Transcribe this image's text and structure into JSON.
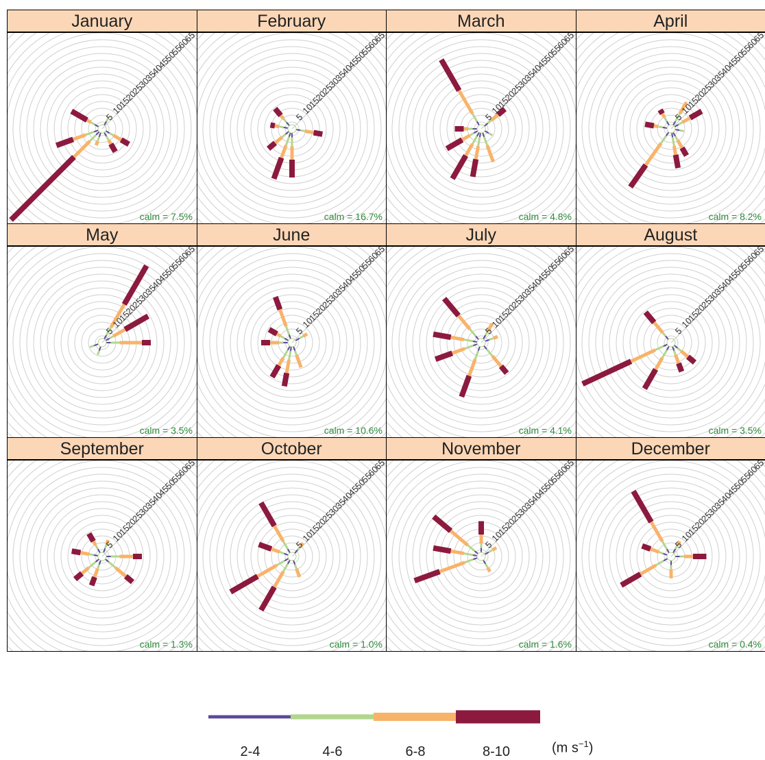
{
  "chart_data": {
    "type": "polar-bar",
    "title": "",
    "radial_ticks": [
      "5",
      "10",
      "15",
      "20",
      "25",
      "30",
      "35",
      "40",
      "45",
      "50",
      "55",
      "60",
      "65"
    ],
    "speed_bins": [
      "2-4",
      "4-6",
      "6-8",
      "8-10"
    ],
    "units_prefix": "(m s",
    "units_exp": "−1",
    "units_suffix": ")",
    "colors": {
      "2-4": "#5b4a9a",
      "4-6": "#b2d68d",
      "6-8": "#f8b36a",
      "8-10": "#8c1a3e"
    },
    "panels": [
      {
        "month": "January",
        "calm": "calm = 7.5%",
        "petals": [
          {
            "dir": 225,
            "segs": [
              1,
              2,
              5,
              20
            ]
          },
          {
            "dir": 250,
            "segs": [
              1,
              2,
              3,
              4
            ]
          },
          {
            "dir": 300,
            "segs": [
              1,
              1,
              1,
              4
            ]
          },
          {
            "dir": 150,
            "segs": [
              1,
              1,
              1,
              2
            ]
          },
          {
            "dir": 120,
            "segs": [
              1,
              1,
              2,
              2
            ]
          },
          {
            "dir": 30,
            "segs": [
              1,
              1,
              0,
              0
            ]
          },
          {
            "dir": 200,
            "segs": [
              1,
              1,
              1,
              0
            ]
          }
        ]
      },
      {
        "month": "February",
        "calm": "calm = 16.7%",
        "petals": [
          {
            "dir": 200,
            "segs": [
              1,
              2,
              3,
              5
            ]
          },
          {
            "dir": 180,
            "segs": [
              1,
              2,
              3,
              4
            ]
          },
          {
            "dir": 230,
            "segs": [
              1,
              1,
              2,
              2
            ]
          },
          {
            "dir": 280,
            "segs": [
              1,
              1,
              1,
              1
            ]
          },
          {
            "dir": 100,
            "segs": [
              1,
              1,
              2,
              2
            ]
          },
          {
            "dir": 320,
            "segs": [
              1,
              1,
              1,
              2
            ]
          }
        ]
      },
      {
        "month": "March",
        "calm": "calm = 4.8%",
        "petals": [
          {
            "dir": 330,
            "segs": [
              1,
              2,
              6,
              8
            ]
          },
          {
            "dir": 210,
            "segs": [
              1,
              2,
              3,
              6
            ]
          },
          {
            "dir": 190,
            "segs": [
              1,
              2,
              3,
              4
            ]
          },
          {
            "dir": 160,
            "segs": [
              1,
              2,
              4,
              0
            ]
          },
          {
            "dir": 240,
            "segs": [
              1,
              1,
              2,
              4
            ]
          },
          {
            "dir": 50,
            "segs": [
              1,
              1,
              2,
              2
            ]
          },
          {
            "dir": 270,
            "segs": [
              1,
              1,
              1,
              2
            ]
          },
          {
            "dir": 120,
            "segs": [
              1,
              1,
              0,
              0
            ]
          }
        ]
      },
      {
        "month": "April",
        "calm": "calm = 8.2%",
        "petals": [
          {
            "dir": 215,
            "segs": [
              1,
              2,
              6,
              6
            ]
          },
          {
            "dir": 170,
            "segs": [
              1,
              2,
              2,
              3
            ]
          },
          {
            "dir": 150,
            "segs": [
              1,
              1,
              2,
              2
            ]
          },
          {
            "dir": 30,
            "segs": [
              1,
              2,
              3,
              0
            ]
          },
          {
            "dir": 60,
            "segs": [
              1,
              1,
              2,
              3
            ]
          },
          {
            "dir": 280,
            "segs": [
              1,
              1,
              1,
              2
            ]
          },
          {
            "dir": 330,
            "segs": [
              1,
              1,
              1,
              1
            ]
          },
          {
            "dir": 100,
            "segs": [
              1,
              1,
              0,
              0
            ]
          }
        ]
      },
      {
        "month": "May",
        "calm": "calm = 3.5%",
        "petals": [
          {
            "dir": 30,
            "segs": [
              1,
              2,
              6,
              10
            ]
          },
          {
            "dir": 60,
            "segs": [
              1,
              1,
              3,
              6
            ]
          },
          {
            "dir": 90,
            "segs": [
              1,
              2,
              5,
              2
            ]
          },
          {
            "dir": 200,
            "segs": [
              1,
              1,
              0,
              0
            ]
          },
          {
            "dir": 250,
            "segs": [
              1,
              1,
              0,
              0
            ]
          }
        ]
      },
      {
        "month": "June",
        "calm": "calm = 10.6%",
        "petals": [
          {
            "dir": 340,
            "segs": [
              1,
              2,
              4,
              3
            ]
          },
          {
            "dir": 190,
            "segs": [
              1,
              2,
              3,
              3
            ]
          },
          {
            "dir": 210,
            "segs": [
              1,
              2,
              2,
              3
            ]
          },
          {
            "dir": 160,
            "segs": [
              1,
              1,
              3,
              0
            ]
          },
          {
            "dir": 270,
            "segs": [
              1,
              1,
              2,
              2
            ]
          },
          {
            "dir": 300,
            "segs": [
              1,
              1,
              1,
              2
            ]
          },
          {
            "dir": 60,
            "segs": [
              1,
              1,
              1,
              0
            ]
          }
        ]
      },
      {
        "month": "July",
        "calm": "calm = 4.1%",
        "petals": [
          {
            "dir": 320,
            "segs": [
              1,
              2,
              4,
              5
            ]
          },
          {
            "dir": 200,
            "segs": [
              1,
              2,
              4,
              5
            ]
          },
          {
            "dir": 280,
            "segs": [
              1,
              2,
              3,
              4
            ]
          },
          {
            "dir": 250,
            "segs": [
              1,
              2,
              3,
              4
            ]
          },
          {
            "dir": 140,
            "segs": [
              1,
              2,
              3,
              2
            ]
          },
          {
            "dir": 30,
            "segs": [
              1,
              1,
              2,
              0
            ]
          },
          {
            "dir": 70,
            "segs": [
              1,
              1,
              1,
              0
            ]
          }
        ]
      },
      {
        "month": "August",
        "calm": "calm = 3.5%",
        "petals": [
          {
            "dir": 245,
            "segs": [
              1,
              2,
              6,
              12
            ]
          },
          {
            "dir": 210,
            "segs": [
              1,
              2,
              3,
              5
            ]
          },
          {
            "dir": 320,
            "segs": [
              1,
              1,
              3,
              3
            ]
          },
          {
            "dir": 160,
            "segs": [
              1,
              1,
              2,
              2
            ]
          },
          {
            "dir": 130,
            "segs": [
              1,
              1,
              2,
              2
            ]
          }
        ]
      },
      {
        "month": "September",
        "calm": "calm = 1.3%",
        "petals": [
          {
            "dir": 90,
            "segs": [
              1,
              2,
              3,
              2
            ]
          },
          {
            "dir": 130,
            "segs": [
              1,
              2,
              3,
              2
            ]
          },
          {
            "dir": 230,
            "segs": [
              1,
              2,
              2,
              2
            ]
          },
          {
            "dir": 280,
            "segs": [
              1,
              1,
              2,
              2
            ]
          },
          {
            "dir": 330,
            "segs": [
              1,
              1,
              1,
              2
            ]
          },
          {
            "dir": 200,
            "segs": [
              1,
              1,
              2,
              2
            ]
          },
          {
            "dir": 20,
            "segs": [
              1,
              1,
              1,
              0
            ]
          }
        ]
      },
      {
        "month": "October",
        "calm": "calm = 1.0%",
        "petals": [
          {
            "dir": 240,
            "segs": [
              1,
              2,
              5,
              7
            ]
          },
          {
            "dir": 210,
            "segs": [
              1,
              2,
              4,
              6
            ]
          },
          {
            "dir": 330,
            "segs": [
              1,
              2,
              4,
              6
            ]
          },
          {
            "dir": 290,
            "segs": [
              1,
              1,
              2,
              3
            ]
          },
          {
            "dir": 160,
            "segs": [
              1,
              1,
              2,
              0
            ]
          },
          {
            "dir": 40,
            "segs": [
              1,
              1,
              1,
              0
            ]
          }
        ]
      },
      {
        "month": "November",
        "calm": "calm = 1.6%",
        "petals": [
          {
            "dir": 250,
            "segs": [
              1,
              2,
              6,
              6
            ]
          },
          {
            "dir": 310,
            "segs": [
              1,
              2,
              5,
              5
            ]
          },
          {
            "dir": 280,
            "segs": [
              1,
              2,
              3,
              4
            ]
          },
          {
            "dir": 0,
            "segs": [
              1,
              1,
              2,
              3
            ]
          },
          {
            "dir": 150,
            "segs": [
              1,
              1,
              1,
              0
            ]
          },
          {
            "dir": 60,
            "segs": [
              1,
              1,
              1,
              0
            ]
          }
        ]
      },
      {
        "month": "December",
        "calm": "calm = 0.4%",
        "petals": [
          {
            "dir": 330,
            "segs": [
              1,
              2,
              5,
              8
            ]
          },
          {
            "dir": 240,
            "segs": [
              1,
              2,
              4,
              5
            ]
          },
          {
            "dir": 90,
            "segs": [
              1,
              1,
              2,
              3
            ]
          },
          {
            "dir": 290,
            "segs": [
              1,
              1,
              2,
              2
            ]
          },
          {
            "dir": 180,
            "segs": [
              1,
              1,
              2,
              0
            ]
          },
          {
            "dir": 30,
            "segs": [
              1,
              1,
              1,
              0
            ]
          }
        ]
      }
    ]
  }
}
